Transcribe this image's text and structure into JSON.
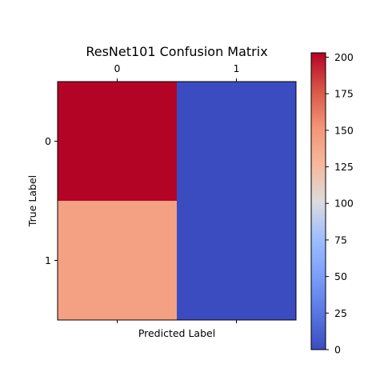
{
  "chart_data": {
    "type": "heatmap",
    "title": "ResNet101 Confusion Matrix",
    "xlabel": "Predicted Label",
    "ylabel": "True Label",
    "x_categories": [
      "0",
      "1"
    ],
    "y_categories": [
      "0",
      "1"
    ],
    "values": [
      [
        203,
        0
      ],
      [
        143,
        0
      ]
    ],
    "colormap": "coolwarm",
    "colorbar": {
      "range": [
        0,
        203
      ],
      "ticks": [
        0,
        25,
        50,
        75,
        100,
        125,
        150,
        175,
        200
      ],
      "tick_labels": [
        "0",
        "25",
        "50",
        "75",
        "100",
        "125",
        "150",
        "175",
        "200"
      ]
    }
  }
}
